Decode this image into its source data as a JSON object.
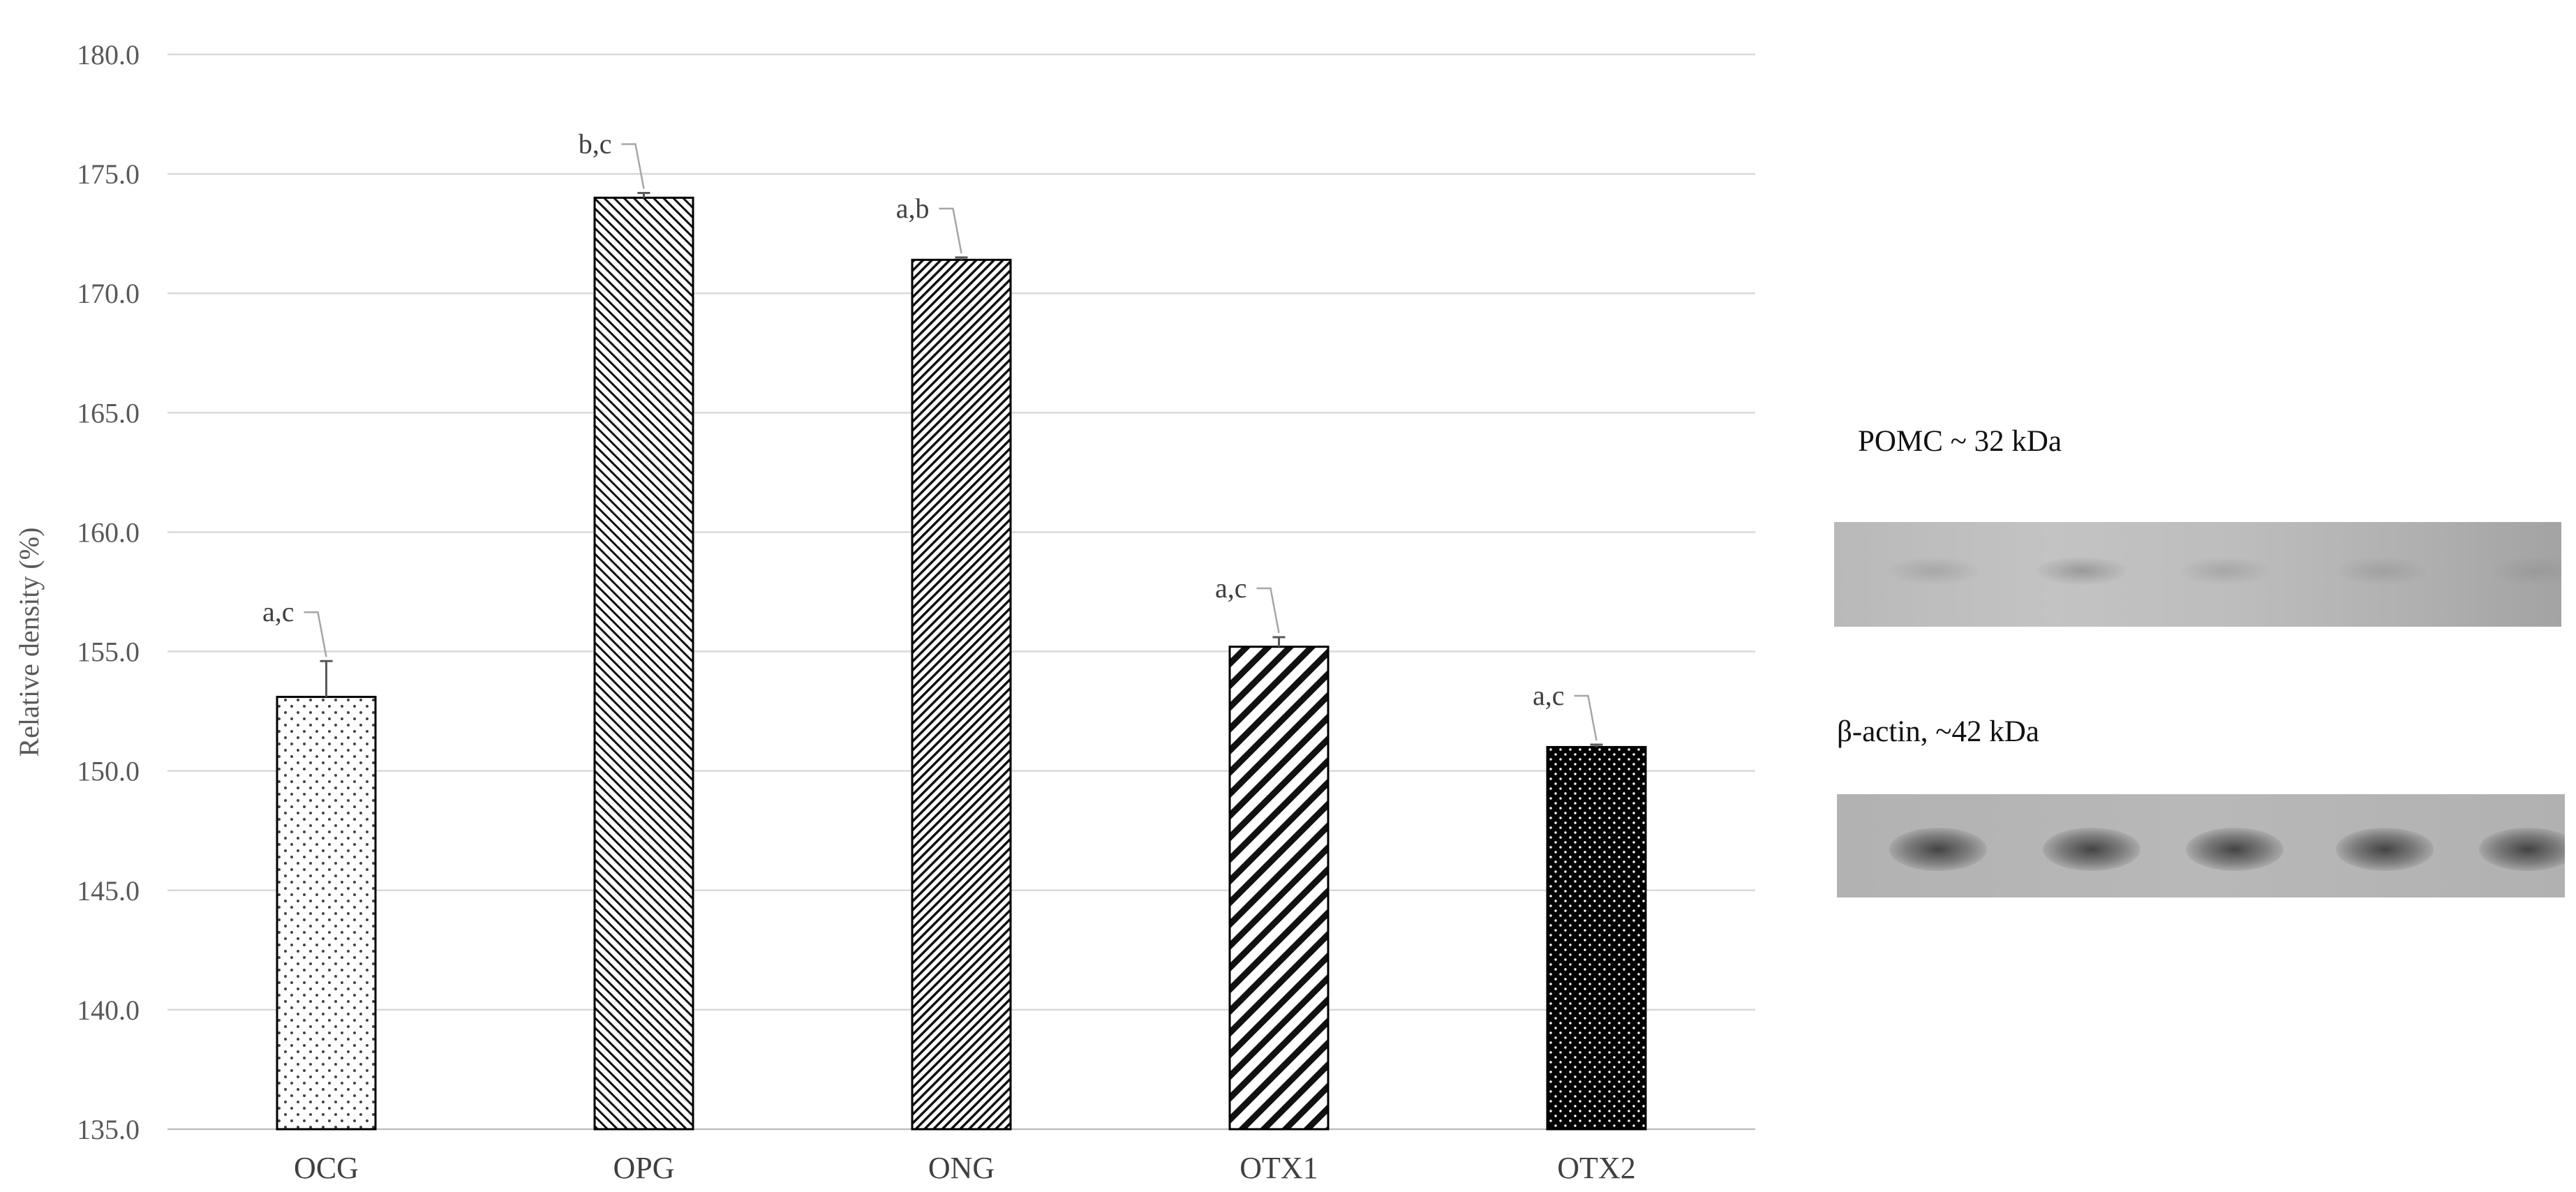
{
  "chart_data": {
    "type": "bar",
    "ylabel": "Relative density (%)",
    "ylim": [
      135.0,
      180.0
    ],
    "yticks": [
      "135.0",
      "140.0",
      "145.0",
      "150.0",
      "155.0",
      "160.0",
      "165.0",
      "170.0",
      "175.0",
      "180.0"
    ],
    "grid": true,
    "categories": [
      "OCG",
      "OPG",
      "ONG",
      "OTX1",
      "OTX2"
    ],
    "values": [
      153.1,
      174.0,
      171.4,
      155.2,
      151.0
    ],
    "errors": [
      1.5,
      0.2,
      0.1,
      0.4,
      0.1
    ],
    "significance": [
      "a,c",
      "b,c",
      "a,b",
      "a,c",
      "a,c"
    ],
    "bar_patterns": [
      "sparse-dots",
      "diagonal-fine",
      "backdiagonal-fine",
      "backdiagonal-wide",
      "dots-on-black"
    ]
  },
  "blot": {
    "pomc_label": "POMC ~ 32 kDa",
    "actin_label": "β-actin, ~42 kDa",
    "lanes": 5
  }
}
